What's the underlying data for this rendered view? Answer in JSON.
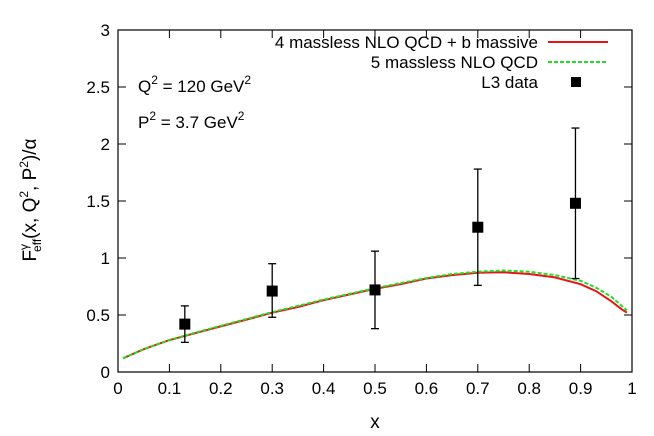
{
  "chart_data": {
    "type": "line",
    "xlabel": "x",
    "ylabel_parts": {
      "base": "F",
      "sup_gamma": "γ",
      "sub_eff": "eff",
      "args_a": "(x, Q",
      "sup_2a": "2",
      "args_b": ", P",
      "sup_2b": "2",
      "args_c": ")/α"
    },
    "xlim": [
      0,
      1
    ],
    "ylim": [
      0,
      3
    ],
    "x_ticks": [
      "0",
      "0.1",
      "0.2",
      "0.3",
      "0.4",
      "0.5",
      "0.6",
      "0.7",
      "0.8",
      "0.9",
      "1"
    ],
    "y_ticks": [
      "0",
      "0.5",
      "1",
      "1.5",
      "2",
      "2.5",
      "3"
    ],
    "annotations": {
      "q2": {
        "text": "Q",
        "sup": "2",
        "rest": " = 120 GeV",
        "unit_sup": "2"
      },
      "p2": {
        "text": "P",
        "sup": "2",
        "rest": " = 3.7 GeV",
        "unit_sup": "2"
      }
    },
    "series": [
      {
        "name": "4 massless  NLO QCD + b massive",
        "style": "solid",
        "color": "#e8141a",
        "x": [
          0.01,
          0.05,
          0.1,
          0.15,
          0.2,
          0.25,
          0.3,
          0.35,
          0.4,
          0.45,
          0.5,
          0.55,
          0.6,
          0.65,
          0.7,
          0.75,
          0.8,
          0.85,
          0.9,
          0.93,
          0.96,
          0.98,
          0.99
        ],
        "y": [
          0.12,
          0.2,
          0.28,
          0.34,
          0.4,
          0.46,
          0.52,
          0.57,
          0.63,
          0.68,
          0.73,
          0.77,
          0.82,
          0.85,
          0.87,
          0.875,
          0.86,
          0.83,
          0.77,
          0.71,
          0.62,
          0.55,
          0.52
        ]
      },
      {
        "name": "5 massless NLO QCD",
        "style": "dashed",
        "color": "#22dd22",
        "x": [
          0.01,
          0.05,
          0.1,
          0.15,
          0.2,
          0.25,
          0.3,
          0.35,
          0.4,
          0.45,
          0.5,
          0.55,
          0.6,
          0.65,
          0.7,
          0.75,
          0.8,
          0.85,
          0.9,
          0.93,
          0.96,
          0.98,
          0.99
        ],
        "y": [
          0.12,
          0.2,
          0.28,
          0.345,
          0.405,
          0.465,
          0.525,
          0.58,
          0.635,
          0.685,
          0.735,
          0.78,
          0.825,
          0.86,
          0.88,
          0.89,
          0.88,
          0.85,
          0.8,
          0.74,
          0.66,
          0.58,
          0.54
        ]
      },
      {
        "name": "L3 data",
        "style": "points",
        "color": "#000000",
        "x": [
          0.13,
          0.3,
          0.5,
          0.7,
          0.89
        ],
        "y": [
          0.42,
          0.71,
          0.72,
          1.27,
          1.48
        ],
        "y_low": [
          0.26,
          0.48,
          0.38,
          0.76,
          0.82
        ],
        "y_high": [
          0.58,
          0.95,
          1.06,
          1.78,
          2.14
        ]
      }
    ]
  }
}
